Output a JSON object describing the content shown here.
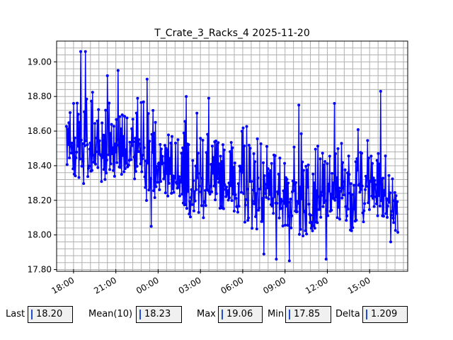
{
  "chart_data": {
    "type": "line",
    "title": "T_Crate_3_Racks_4 2025-11-20",
    "xlabel": "",
    "ylabel": "",
    "x_tick_labels": [
      "18:00",
      "21:00",
      "00:00",
      "03:00",
      "06:00",
      "09:00",
      "12:00",
      "15:00"
    ],
    "x_tick_hours": [
      18,
      21,
      24,
      27,
      30,
      33,
      36,
      39
    ],
    "y_tick_labels": [
      "17.80",
      "18.00",
      "18.20",
      "18.40",
      "18.60",
      "18.80",
      "19.00"
    ],
    "y_ticks": [
      17.8,
      18.0,
      18.2,
      18.4,
      18.6,
      18.8,
      19.0
    ],
    "xlim_hours": [
      16.8,
      41.7
    ],
    "ylim": [
      17.79,
      19.12
    ],
    "grid": true,
    "marker": "point",
    "color": "#0000ff",
    "series": [
      {
        "x_start_hour": 17.5,
        "x_end_hour": 41.0,
        "trend": [
          {
            "hour": 17.5,
            "value": 18.52
          },
          {
            "hour": 20.0,
            "value": 18.52
          },
          {
            "hour": 22.0,
            "value": 18.5
          },
          {
            "hour": 24.0,
            "value": 18.4
          },
          {
            "hour": 27.0,
            "value": 18.33
          },
          {
            "hour": 30.0,
            "value": 18.3
          },
          {
            "hour": 33.0,
            "value": 18.22
          },
          {
            "hour": 36.0,
            "value": 18.25
          },
          {
            "hour": 39.0,
            "value": 18.3
          },
          {
            "hour": 41.0,
            "value": 18.2
          }
        ],
        "peaks": [
          {
            "hour": 18.5,
            "value": 19.06
          },
          {
            "hour": 18.83,
            "value": 19.06
          },
          {
            "hour": 20.4,
            "value": 18.92
          },
          {
            "hour": 21.15,
            "value": 18.95
          },
          {
            "hour": 23.2,
            "value": 18.9
          },
          {
            "hour": 26.0,
            "value": 18.8
          },
          {
            "hour": 27.6,
            "value": 18.79
          },
          {
            "hour": 34.0,
            "value": 18.75
          },
          {
            "hour": 36.5,
            "value": 18.76
          },
          {
            "hour": 39.8,
            "value": 18.83
          }
        ],
        "troughs": [
          {
            "hour": 23.5,
            "value": 18.05
          },
          {
            "hour": 31.5,
            "value": 17.89
          },
          {
            "hour": 32.4,
            "value": 17.86
          },
          {
            "hour": 33.3,
            "value": 17.85
          },
          {
            "hour": 35.9,
            "value": 17.86
          },
          {
            "hour": 40.5,
            "value": 17.96
          }
        ]
      }
    ]
  },
  "stats": {
    "last_label": "Last",
    "last_value": "18.20",
    "mean_label": "Mean(10)",
    "mean_value": "18.23",
    "max_label": "Max",
    "max_value": "19.06",
    "min_label": "Min",
    "min_value": "17.85",
    "delta_label": "Delta",
    "delta_value": "1.209"
  }
}
